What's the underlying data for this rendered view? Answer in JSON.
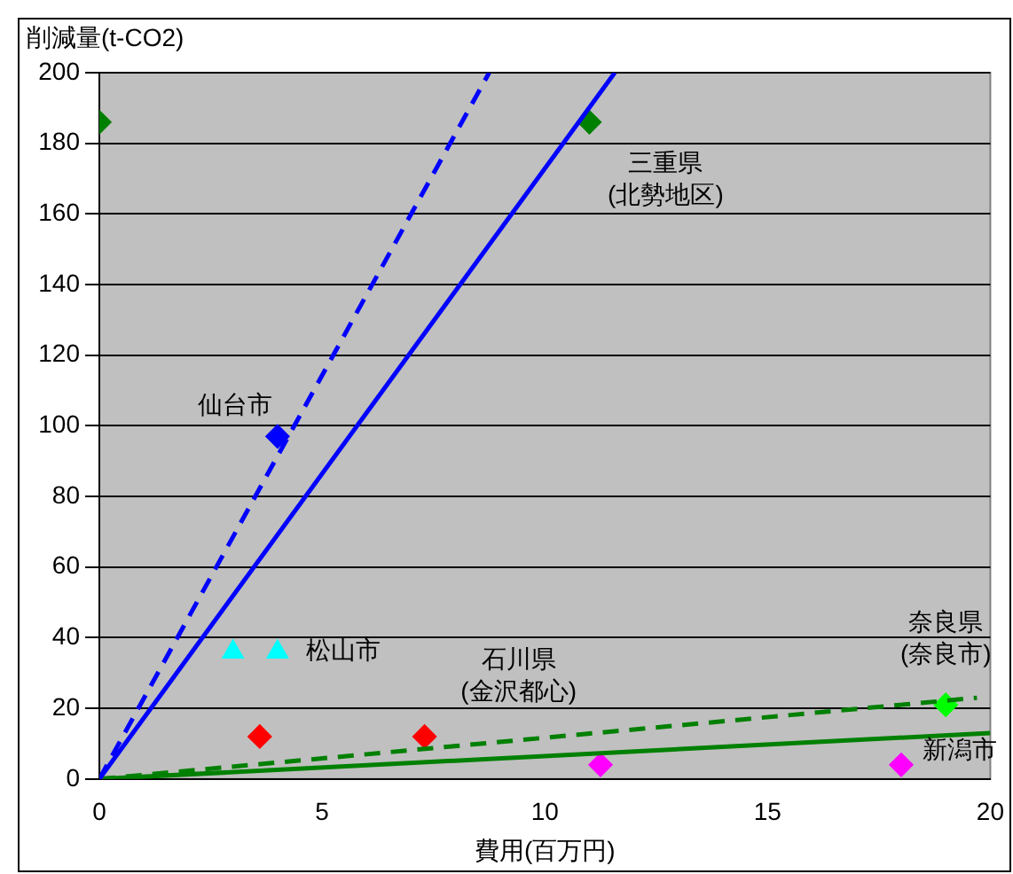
{
  "chart_data": {
    "type": "scatter",
    "xlabel": "費用(百万円)",
    "ylabel": "削減量(t‐CO2)",
    "xlim": [
      0,
      20
    ],
    "xticks": [
      0,
      5,
      10,
      15,
      20
    ],
    "ylim": [
      0,
      200
    ],
    "yticks": [
      0,
      20,
      40,
      60,
      80,
      100,
      120,
      140,
      160,
      180,
      200
    ],
    "grid": "y",
    "legend": false,
    "series": [
      {
        "type": "line",
        "color": "#0000ff",
        "line_style": "dashed",
        "marker": "none",
        "x": [
          0,
          8.75
        ],
        "values": [
          0,
          200
        ]
      },
      {
        "type": "line",
        "color": "#0000ff",
        "line_style": "solid",
        "marker": "none",
        "x": [
          0,
          11.57
        ],
        "values": [
          0,
          200
        ]
      },
      {
        "type": "line",
        "color": "#008000",
        "line_style": "dashed",
        "marker": "none",
        "x": [
          0,
          19.7
        ],
        "values": [
          0,
          23
        ]
      },
      {
        "type": "line",
        "color": "#008000",
        "line_style": "solid",
        "marker": "none",
        "x": [
          0,
          20
        ],
        "values": [
          0,
          13
        ]
      },
      {
        "color": "#008000",
        "marker": "diamond",
        "x": [
          0
        ],
        "values": [
          186
        ]
      },
      {
        "color": "#008000",
        "marker": "diamond",
        "x": [
          11
        ],
        "values": [
          186
        ]
      },
      {
        "color": "#0000ff",
        "marker": "diamond",
        "x": [
          4
        ],
        "values": [
          97
        ]
      },
      {
        "color": "#00ffff",
        "marker": "triangle",
        "x": [
          3
        ],
        "values": [
          36
        ]
      },
      {
        "color": "#00ffff",
        "marker": "triangle",
        "x": [
          4
        ],
        "values": [
          36
        ]
      },
      {
        "color": "#ff0000",
        "marker": "diamond",
        "x": [
          3.6
        ],
        "values": [
          12
        ]
      },
      {
        "color": "#ff0000",
        "marker": "diamond",
        "x": [
          7.3
        ],
        "values": [
          12
        ]
      },
      {
        "color": "#ff00ff",
        "marker": "diamond",
        "x": [
          11.25
        ],
        "values": [
          4
        ]
      },
      {
        "color": "#ff00ff",
        "marker": "diamond",
        "x": [
          18
        ],
        "values": [
          4
        ]
      },
      {
        "color": "#00ff00",
        "marker": "diamond",
        "x": [
          19
        ],
        "values": [
          21
        ]
      }
    ],
    "annotations": [
      {
        "text": "仙台市",
        "x": 4,
        "y": 97
      },
      {
        "text": "三重県\n(北勢地区)",
        "x": 11,
        "y": 186
      },
      {
        "text": "松山市",
        "x": 4,
        "y": 36
      },
      {
        "text": "石川県\n(金沢都心)",
        "x": 7.3,
        "y": 12
      },
      {
        "text": "奈良県\n(奈良市)",
        "x": 19,
        "y": 21
      },
      {
        "text": "新潟市",
        "x": 18,
        "y": 4
      }
    ]
  }
}
